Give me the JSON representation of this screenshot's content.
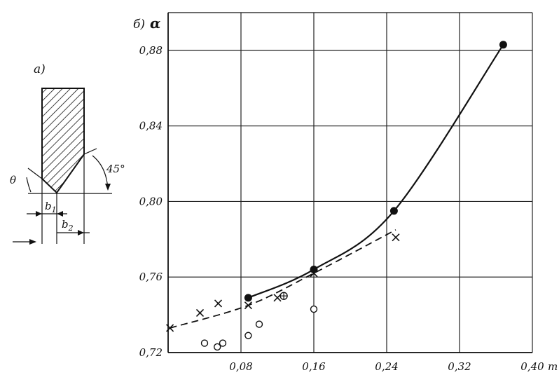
{
  "panel_a": {
    "label": "а)",
    "angle_theta": "θ",
    "angle_45": "45°",
    "dim_b1_main": "b",
    "dim_b1_sub": "1",
    "dim_b2_main": "b",
    "dim_b2_sub": "2"
  },
  "chart_data": {
    "type": "scatter",
    "panel_label": "б)",
    "title": "",
    "xlabel": "m",
    "ylabel": "α",
    "xlim": [
      0,
      0.4
    ],
    "ylim": [
      0.72,
      0.9
    ],
    "xticks": [
      0.08,
      0.16,
      0.24,
      0.32,
      0.4
    ],
    "xtick_labels": [
      "0,08",
      "0,16",
      "0,24",
      "0,32",
      "0,40"
    ],
    "yticks": [
      0.72,
      0.76,
      0.8,
      0.84,
      0.88
    ],
    "ytick_labels": [
      "0,72",
      "0,76",
      "0,80",
      "0,84",
      "0,88"
    ],
    "grid": true,
    "series": [
      {
        "marker": "filled-circle",
        "line": "solid",
        "points": [
          [
            0.088,
            0.749
          ],
          [
            0.16,
            0.764
          ],
          [
            0.248,
            0.795
          ],
          [
            0.368,
            0.883
          ]
        ]
      },
      {
        "marker": "cross",
        "line": "dashed",
        "points": [
          [
            0.002,
            0.733
          ],
          [
            0.035,
            0.741
          ],
          [
            0.055,
            0.746
          ],
          [
            0.088,
            0.745
          ],
          [
            0.12,
            0.749
          ],
          [
            0.16,
            0.762
          ],
          [
            0.25,
            0.781
          ]
        ]
      },
      {
        "marker": "circled-plus",
        "line": "none",
        "points": [
          [
            0.127,
            0.75
          ]
        ]
      },
      {
        "marker": "open-circle",
        "line": "none",
        "points": [
          [
            0.04,
            0.725
          ],
          [
            0.054,
            0.723
          ],
          [
            0.06,
            0.725
          ],
          [
            0.088,
            0.729
          ],
          [
            0.1,
            0.735
          ],
          [
            0.16,
            0.743
          ]
        ]
      }
    ]
  }
}
